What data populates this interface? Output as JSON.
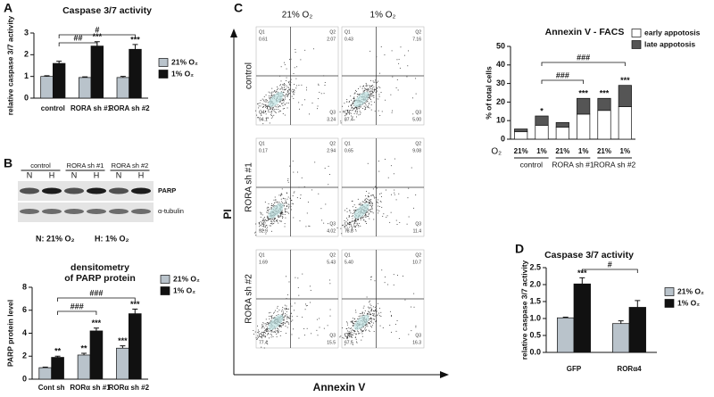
{
  "figure_labels": [
    "A",
    "B",
    "C",
    "D"
  ],
  "blot": {
    "groups": [
      "control",
      "RORA sh #1",
      "RORA sh #2"
    ],
    "lanes": [
      "N",
      "H",
      "N",
      "H",
      "N",
      "H"
    ],
    "bands": [
      "PARP",
      "α-tubulin"
    ],
    "legend": [
      "N: 21% O₂",
      "H: 1% O₂"
    ]
  },
  "facs": {
    "columns": [
      "21% O₂",
      "1% O₂"
    ],
    "rows": [
      "control",
      "RORA sh #1",
      "RORA sh #2"
    ],
    "x_label": "Annexin V",
    "y_label": "PI",
    "quadrants": [
      "Q1",
      "Q2",
      "Q3",
      "Q4"
    ],
    "plots": [
      [
        [
          "0.61",
          "2.07",
          "3.24",
          "94.1"
        ],
        [
          "0.43",
          "7.16",
          "5.00",
          "87.4"
        ]
      ],
      [
        [
          "0.17",
          "2.94",
          "4.02",
          "92.9"
        ],
        [
          "0.65",
          "9.08",
          "11.4",
          "78.8"
        ]
      ],
      [
        [
          "1.69",
          "5.43",
          "15.5",
          "77.4"
        ],
        [
          "5.40",
          "10.7",
          "16.3",
          "67.5"
        ]
      ]
    ]
  },
  "chart_data": [
    {
      "type": "bar",
      "title": "Caspase 3/7 activity",
      "y_label": "relative caspase 3/7 activity",
      "categories": [
        "control",
        "RORA sh #1",
        "RORA sh #2"
      ],
      "series": [
        {
          "name": "21% O₂",
          "color": "#b9c3cb",
          "values": [
            1.0,
            0.95,
            0.95
          ],
          "errors": [
            0.03,
            0.03,
            0.05
          ]
        },
        {
          "name": "1% O₂",
          "color": "#111111",
          "values": [
            1.6,
            2.4,
            2.25
          ],
          "errors": [
            0.1,
            0.2,
            0.22
          ],
          "significance": [
            null,
            "***",
            "***"
          ]
        }
      ],
      "brackets": [
        "##",
        "#"
      ],
      "ylim": [
        0,
        3
      ],
      "yticks": [
        0,
        1,
        2,
        3
      ],
      "legend": "right"
    },
    {
      "type": "bar",
      "title": [
        "densitometry",
        "of PARP protein"
      ],
      "y_label": "PARP protein level",
      "categories": [
        "Cont sh",
        "RORα sh #1",
        "RORα sh #2"
      ],
      "series": [
        {
          "name": "21% O₂",
          "color": "#b9c3cb",
          "values": [
            1.0,
            2.1,
            2.7
          ],
          "errors": [
            0.05,
            0.15,
            0.2
          ],
          "significance": [
            null,
            "**",
            "***"
          ]
        },
        {
          "name": "1% O₂",
          "color": "#111111",
          "values": [
            1.9,
            4.2,
            5.7
          ],
          "errors": [
            0.1,
            0.25,
            0.4
          ],
          "significance": [
            "**",
            "***",
            "***"
          ]
        }
      ],
      "brackets": [
        "###",
        "###"
      ],
      "ylim": [
        0,
        8
      ],
      "yticks": [
        0,
        2,
        4,
        6,
        8
      ],
      "legend": "right"
    },
    {
      "type": "stacked_bar",
      "title": "Annexin V - FACS",
      "y_label": "% of total cells",
      "category_axis_label": "O₂",
      "categories": [
        "21%",
        "1%",
        "21%",
        "1%",
        "21%",
        "1%"
      ],
      "groups": [
        "control",
        "RORA sh #1",
        "RORA sh #2"
      ],
      "series": [
        {
          "name": "early appotosis",
          "color": "#ffffff",
          "values": [
            4,
            7.5,
            6.5,
            13.5,
            15.5,
            17.5
          ]
        },
        {
          "name": "late appotosis",
          "color": "#555555",
          "values": [
            1.5,
            5,
            2.5,
            8.5,
            6.5,
            11.5
          ],
          "significance": [
            null,
            "*",
            null,
            "***",
            "***",
            "***"
          ]
        }
      ],
      "brackets": [
        "###",
        "###"
      ],
      "ylim": [
        0,
        50
      ],
      "yticks": [
        0,
        10,
        20,
        30,
        40,
        50
      ],
      "legend": "upper right"
    },
    {
      "type": "bar",
      "title": "Caspase 3/7 activity",
      "y_label": "relative caspase 3/7 activity",
      "categories": [
        "GFP",
        "RORα4"
      ],
      "series": [
        {
          "name": "21% O₂",
          "color": "#b9c3cb",
          "values": [
            1.02,
            0.85
          ],
          "errors": [
            0.02,
            0.08
          ]
        },
        {
          "name": "1% O₂",
          "color": "#111111",
          "values": [
            2.02,
            1.33
          ],
          "errors": [
            0.18,
            0.2
          ],
          "significance": [
            "***",
            null
          ]
        }
      ],
      "brackets": [
        "#"
      ],
      "ylim": [
        0,
        2.5
      ],
      "yticks": [
        {
          "value": 0,
          "label": "0.0"
        },
        0.5,
        {
          "value": 1,
          "label": "1.0"
        },
        1.5,
        {
          "value": 2,
          "label": "2.0"
        },
        2.5
      ],
      "legend": "right"
    }
  ]
}
